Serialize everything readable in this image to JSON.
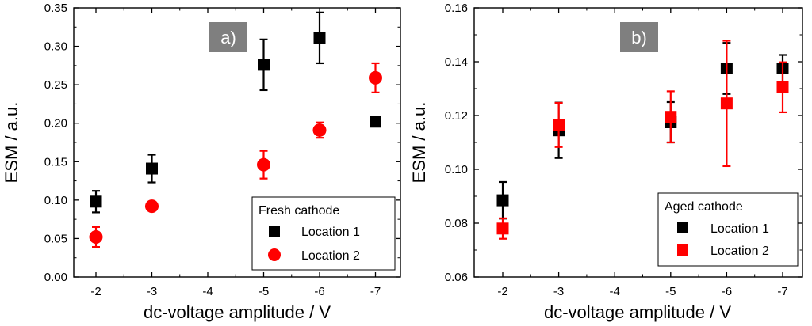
{
  "chart_data": [
    {
      "type": "scatter",
      "panel_label": "a)",
      "xlabel": "dc-voltage amplitude / V",
      "ylabel": "ESM / a.u.",
      "x_ticks": [
        -2,
        -3,
        -4,
        -5,
        -6,
        -7
      ],
      "x_tick_labels": [
        "-2",
        "-3",
        "-4",
        "-5",
        "-6",
        "-7"
      ],
      "ylim": [
        0.0,
        0.35
      ],
      "y_ticks": [
        0.0,
        0.05,
        0.1,
        0.15,
        0.2,
        0.25,
        0.3,
        0.35
      ],
      "y_tick_labels": [
        "0.00",
        "0.05",
        "0.10",
        "0.15",
        "0.20",
        "0.25",
        "0.30",
        "0.35"
      ],
      "legend_title": "Fresh cathode",
      "legend_position": "bottom-right",
      "series": [
        {
          "name": "Location 1",
          "color": "#000000",
          "marker": "square",
          "x": [
            -2,
            -3,
            -5,
            -6,
            -7
          ],
          "y": [
            0.098,
            0.141,
            0.276,
            0.311,
            0.202
          ],
          "err": [
            0.014,
            0.018,
            0.033,
            0.033,
            0.006
          ]
        },
        {
          "name": "Location 2",
          "color": "#ff0000",
          "marker": "circle",
          "x": [
            -2,
            -3,
            -5,
            -6,
            -7
          ],
          "y": [
            0.052,
            0.092,
            0.146,
            0.191,
            0.259
          ],
          "err": [
            0.013,
            0.004,
            0.018,
            0.01,
            0.019
          ]
        }
      ]
    },
    {
      "type": "scatter",
      "panel_label": "b)",
      "xlabel": "dc-voltage amplitude / V",
      "ylabel": "ESM / a.u.",
      "x_ticks": [
        -2,
        -3,
        -4,
        -5,
        -6,
        -7
      ],
      "x_tick_labels": [
        "-2",
        "-3",
        "-4",
        "-5",
        "-6",
        "-7"
      ],
      "ylim": [
        0.06,
        0.16
      ],
      "y_ticks": [
        0.06,
        0.08,
        0.1,
        0.12,
        0.14,
        0.16
      ],
      "y_tick_labels": [
        "0.06",
        "0.08",
        "0.10",
        "0.12",
        "0.14",
        "0.16"
      ],
      "legend_title": "Aged cathode",
      "legend_position": "bottom-right",
      "series": [
        {
          "name": "Location 1",
          "color": "#000000",
          "marker": "square",
          "x": [
            -2,
            -3,
            -5,
            -6,
            -7
          ],
          "y": [
            0.0885,
            0.1145,
            0.1175,
            0.1375,
            0.1375
          ],
          "err": [
            0.0068,
            0.0103,
            0.0075,
            0.0095,
            0.005
          ]
        },
        {
          "name": "Location 2",
          "color": "#ff0000",
          "marker": "square",
          "x": [
            -2,
            -3,
            -5,
            -6,
            -7
          ],
          "y": [
            0.078,
            0.1165,
            0.1195,
            0.1245,
            0.1305
          ],
          "err": [
            0.0038,
            0.0082,
            0.0095,
            0.0233,
            0.0093
          ]
        }
      ]
    }
  ]
}
